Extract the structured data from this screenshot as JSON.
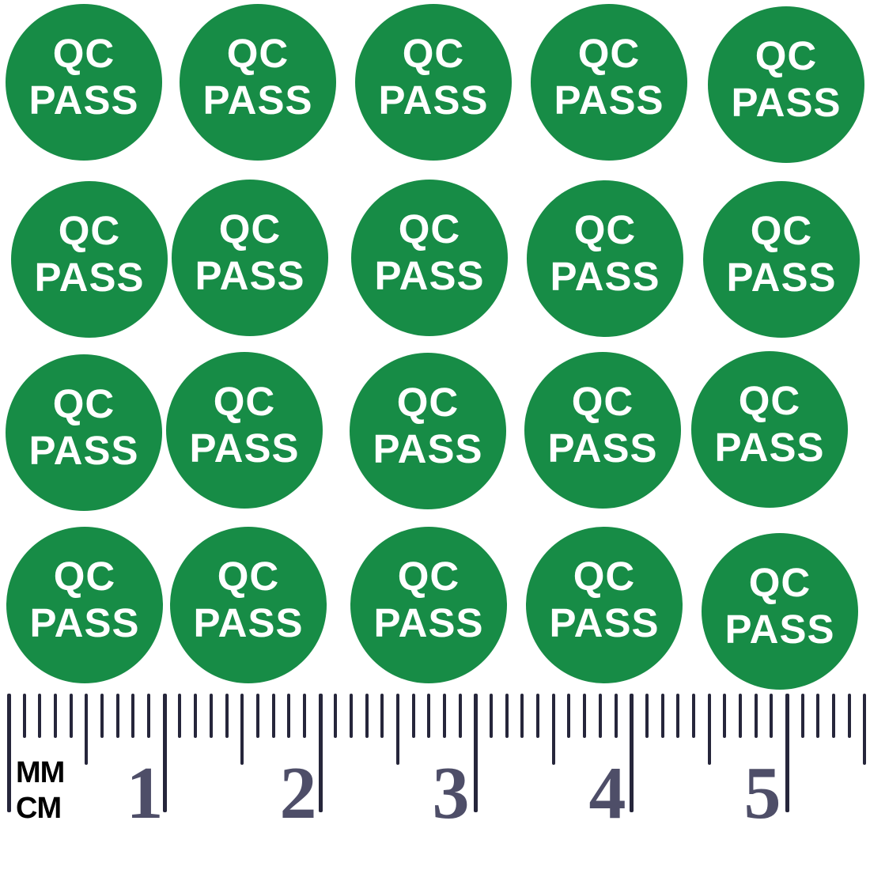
{
  "image": {
    "description": "Sheet of 20 round green QC PASS quality-control stickers shown above a centimeter ruler for scale",
    "background_color": "#ffffff"
  },
  "stickers": {
    "label_line1": "QC",
    "label_line2": "PASS",
    "count": 20,
    "rows": 4,
    "columns": 5,
    "shape": "circle",
    "color": "#178c46",
    "text_color": "#ffffff"
  },
  "ruler": {
    "unit_top_label": "MM",
    "unit_bottom_label": "CM",
    "numbers": [
      "1",
      "2",
      "3",
      "4",
      "5"
    ],
    "minor_tick_unit_mm": 1,
    "major_tick_unit_cm": 1,
    "tick_color": "#26263b",
    "numeral_color": "#4e4e68",
    "unit_label_color": "#000000"
  }
}
